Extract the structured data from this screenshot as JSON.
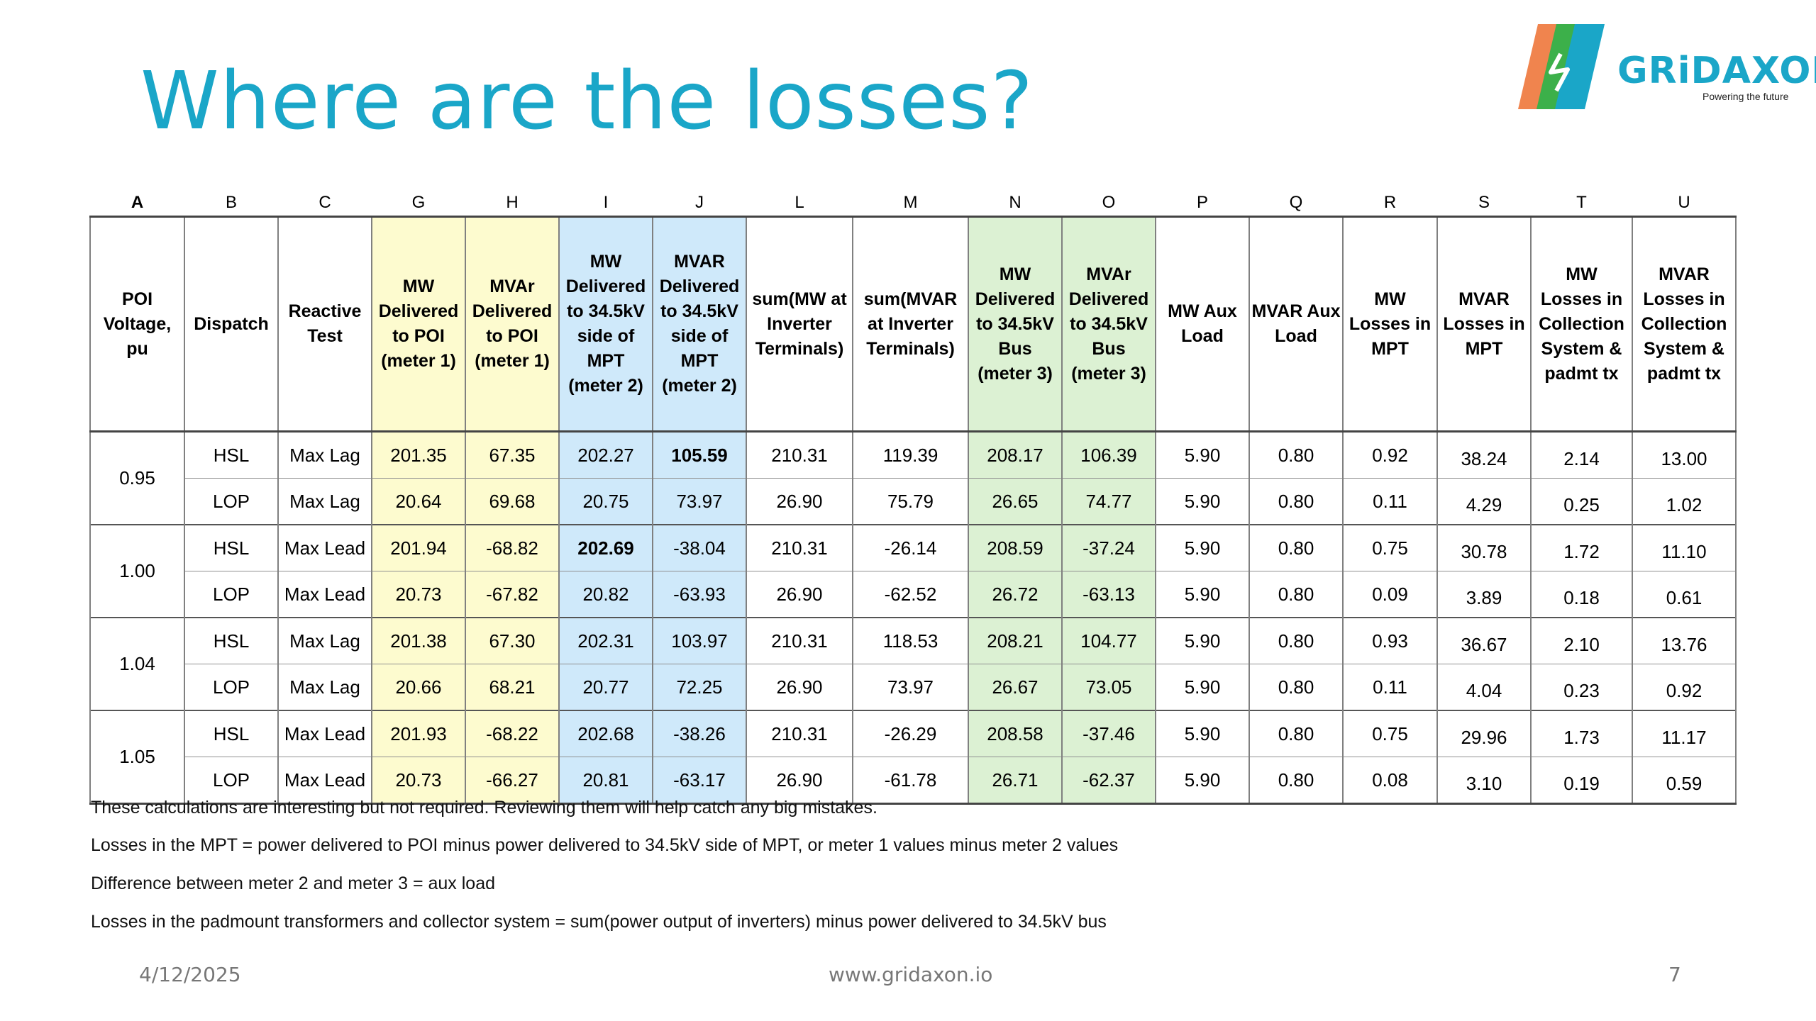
{
  "title": "Where are the losses?",
  "logo": {
    "name": "GRiDAXON",
    "tagline": "Powering the future"
  },
  "table": {
    "column_letters": [
      "A",
      "B",
      "C",
      "G",
      "H",
      "I",
      "J",
      "L",
      "M",
      "N",
      "O",
      "P",
      "Q",
      "R",
      "S",
      "T",
      "U"
    ],
    "headers": [
      "POI Voltage, pu",
      "Dispatch",
      "Reactive Test",
      "MW Delivered to POI (meter 1)",
      "MVAr Delivered to POI (meter 1)",
      "MW Delivered to 34.5kV side of MPT (meter 2)",
      "MVAR Delivered to 34.5kV side of MPT (meter 2)",
      "sum(MW at Inverter Terminals)",
      "sum(MVAR at Inverter Terminals)",
      "MW Delivered to 34.5kV Bus (meter 3)",
      "MVAr Delivered to 34.5kV Bus (meter 3)",
      "MW Aux Load",
      "MVAR Aux Load",
      "MW Losses in MPT",
      "MVAR Losses in MPT",
      "MW Losses in Collection System & padmt tx",
      "MVAR Losses in Collection System & padmt tx"
    ],
    "groups": [
      {
        "voltage": "0.95",
        "rows": [
          {
            "dispatch": "HSL",
            "test": "Max Lag",
            "values": [
              "201.35",
              "67.35",
              "202.27",
              "105.59",
              "210.31",
              "119.39",
              "208.17",
              "106.39",
              "5.90",
              "0.80",
              "0.92",
              "38.24",
              "2.14",
              "13.00"
            ]
          },
          {
            "dispatch": "LOP",
            "test": "Max Lag",
            "values": [
              "20.64",
              "69.68",
              "20.75",
              "73.97",
              "26.90",
              "75.79",
              "26.65",
              "74.77",
              "5.90",
              "0.80",
              "0.11",
              "4.29",
              "0.25",
              "1.02"
            ]
          }
        ]
      },
      {
        "voltage": "1.00",
        "rows": [
          {
            "dispatch": "HSL",
            "test": "Max Lead",
            "values": [
              "201.94",
              "-68.82",
              "202.69",
              "-38.04",
              "210.31",
              "-26.14",
              "208.59",
              "-37.24",
              "5.90",
              "0.80",
              "0.75",
              "30.78",
              "1.72",
              "11.10"
            ]
          },
          {
            "dispatch": "LOP",
            "test": "Max Lead",
            "values": [
              "20.73",
              "-67.82",
              "20.82",
              "-63.93",
              "26.90",
              "-62.52",
              "26.72",
              "-63.13",
              "5.90",
              "0.80",
              "0.09",
              "3.89",
              "0.18",
              "0.61"
            ]
          }
        ]
      },
      {
        "voltage": "1.04",
        "rows": [
          {
            "dispatch": "HSL",
            "test": "Max Lag",
            "values": [
              "201.38",
              "67.30",
              "202.31",
              "103.97",
              "210.31",
              "118.53",
              "208.21",
              "104.77",
              "5.90",
              "0.80",
              "0.93",
              "36.67",
              "2.10",
              "13.76"
            ]
          },
          {
            "dispatch": "LOP",
            "test": "Max Lag",
            "values": [
              "20.66",
              "68.21",
              "20.77",
              "72.25",
              "26.90",
              "73.97",
              "26.67",
              "73.05",
              "5.90",
              "0.80",
              "0.11",
              "4.04",
              "0.23",
              "0.92"
            ]
          }
        ]
      },
      {
        "voltage": "1.05",
        "rows": [
          {
            "dispatch": "HSL",
            "test": "Max Lead",
            "values": [
              "201.93",
              "-68.22",
              "202.68",
              "-38.26",
              "210.31",
              "-26.29",
              "208.58",
              "-37.46",
              "5.90",
              "0.80",
              "0.75",
              "29.96",
              "1.73",
              "11.17"
            ]
          },
          {
            "dispatch": "LOP",
            "test": "Max Lead",
            "values": [
              "20.73",
              "-66.27",
              "20.81",
              "-63.17",
              "26.90",
              "-61.78",
              "26.71",
              "-62.37",
              "5.90",
              "0.80",
              "0.08",
              "3.10",
              "0.19",
              "0.59"
            ]
          }
        ]
      }
    ]
  },
  "notes": [
    "These calculations are interesting but not required.  Reviewing them will help catch any big mistakes.",
    "Losses in the MPT = power delivered to POI minus power delivered to 34.5kV side of MPT, or meter 1 values minus meter 2 values",
    "Difference between meter 2 and meter 3 = aux load",
    "Losses in the padmount transformers and collector system = sum(power output of inverters) minus power delivered to 34.5kV bus"
  ],
  "footer": {
    "date": "4/12/2025",
    "website": "www.gridaxon.io",
    "page_number": "7"
  },
  "colors": {
    "title": "#1aa6c8",
    "meter1": "#fdfbcf",
    "meter2": "#cfe9fa",
    "meter3": "#dcf1d3",
    "logo_orange": "#f0844e",
    "logo_green": "#3cb04a",
    "logo_blue": "#1aa6c8"
  }
}
